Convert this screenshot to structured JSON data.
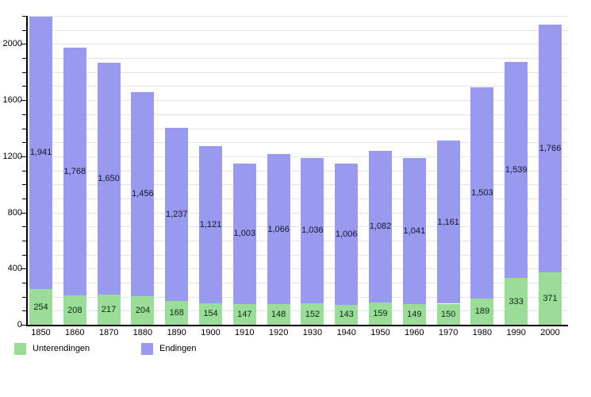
{
  "chart_data": {
    "type": "bar",
    "stacked": true,
    "categories": [
      "1850",
      "1860",
      "1870",
      "1880",
      "1890",
      "1900",
      "1910",
      "1920",
      "1930",
      "1940",
      "1950",
      "1960",
      "1970",
      "1980",
      "1990",
      "2000"
    ],
    "series": [
      {
        "name": "Unterendingen",
        "color": "#99dd99",
        "values": [
          254,
          208,
          217,
          204,
          168,
          154,
          147,
          148,
          152,
          143,
          159,
          149,
          150,
          189,
          333,
          371
        ]
      },
      {
        "name": "Endingen",
        "color": "#9999ee",
        "values": [
          1941,
          1768,
          1650,
          1456,
          1237,
          1121,
          1003,
          1066,
          1036,
          1006,
          1082,
          1041,
          1161,
          1503,
          1539,
          1766
        ]
      }
    ],
    "ylim": [
      0,
      2200
    ],
    "yticks_major": [
      0,
      400,
      800,
      1200,
      1600,
      2000
    ],
    "ygrid_step": 100,
    "grid": true,
    "legend_position": "bottom-left",
    "value_labels": "inside-center"
  }
}
